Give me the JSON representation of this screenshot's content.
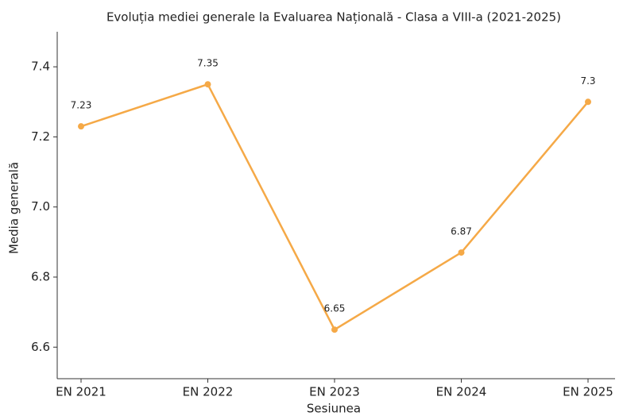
{
  "chart_data": {
    "type": "line",
    "title": "Evoluția mediei generale la Evaluarea Națională - Clasa a VIII-a (2021-2025)",
    "x_label": "Sesiunea",
    "y_label": "Media generală",
    "categories": [
      "EN 2021",
      "EN 2022",
      "EN 2023",
      "EN 2024",
      "EN 2025"
    ],
    "series": [
      {
        "name": "Media generală",
        "color": "#f5a947",
        "values": [
          7.23,
          7.35,
          6.65,
          6.87,
          7.3
        ]
      }
    ],
    "ylim": [
      6.51,
      7.5
    ],
    "yticks": [
      6.6,
      6.8,
      {
        "value": 7,
        "label": "7.0"
      },
      7.2,
      7.4
    ],
    "grid": false
  }
}
